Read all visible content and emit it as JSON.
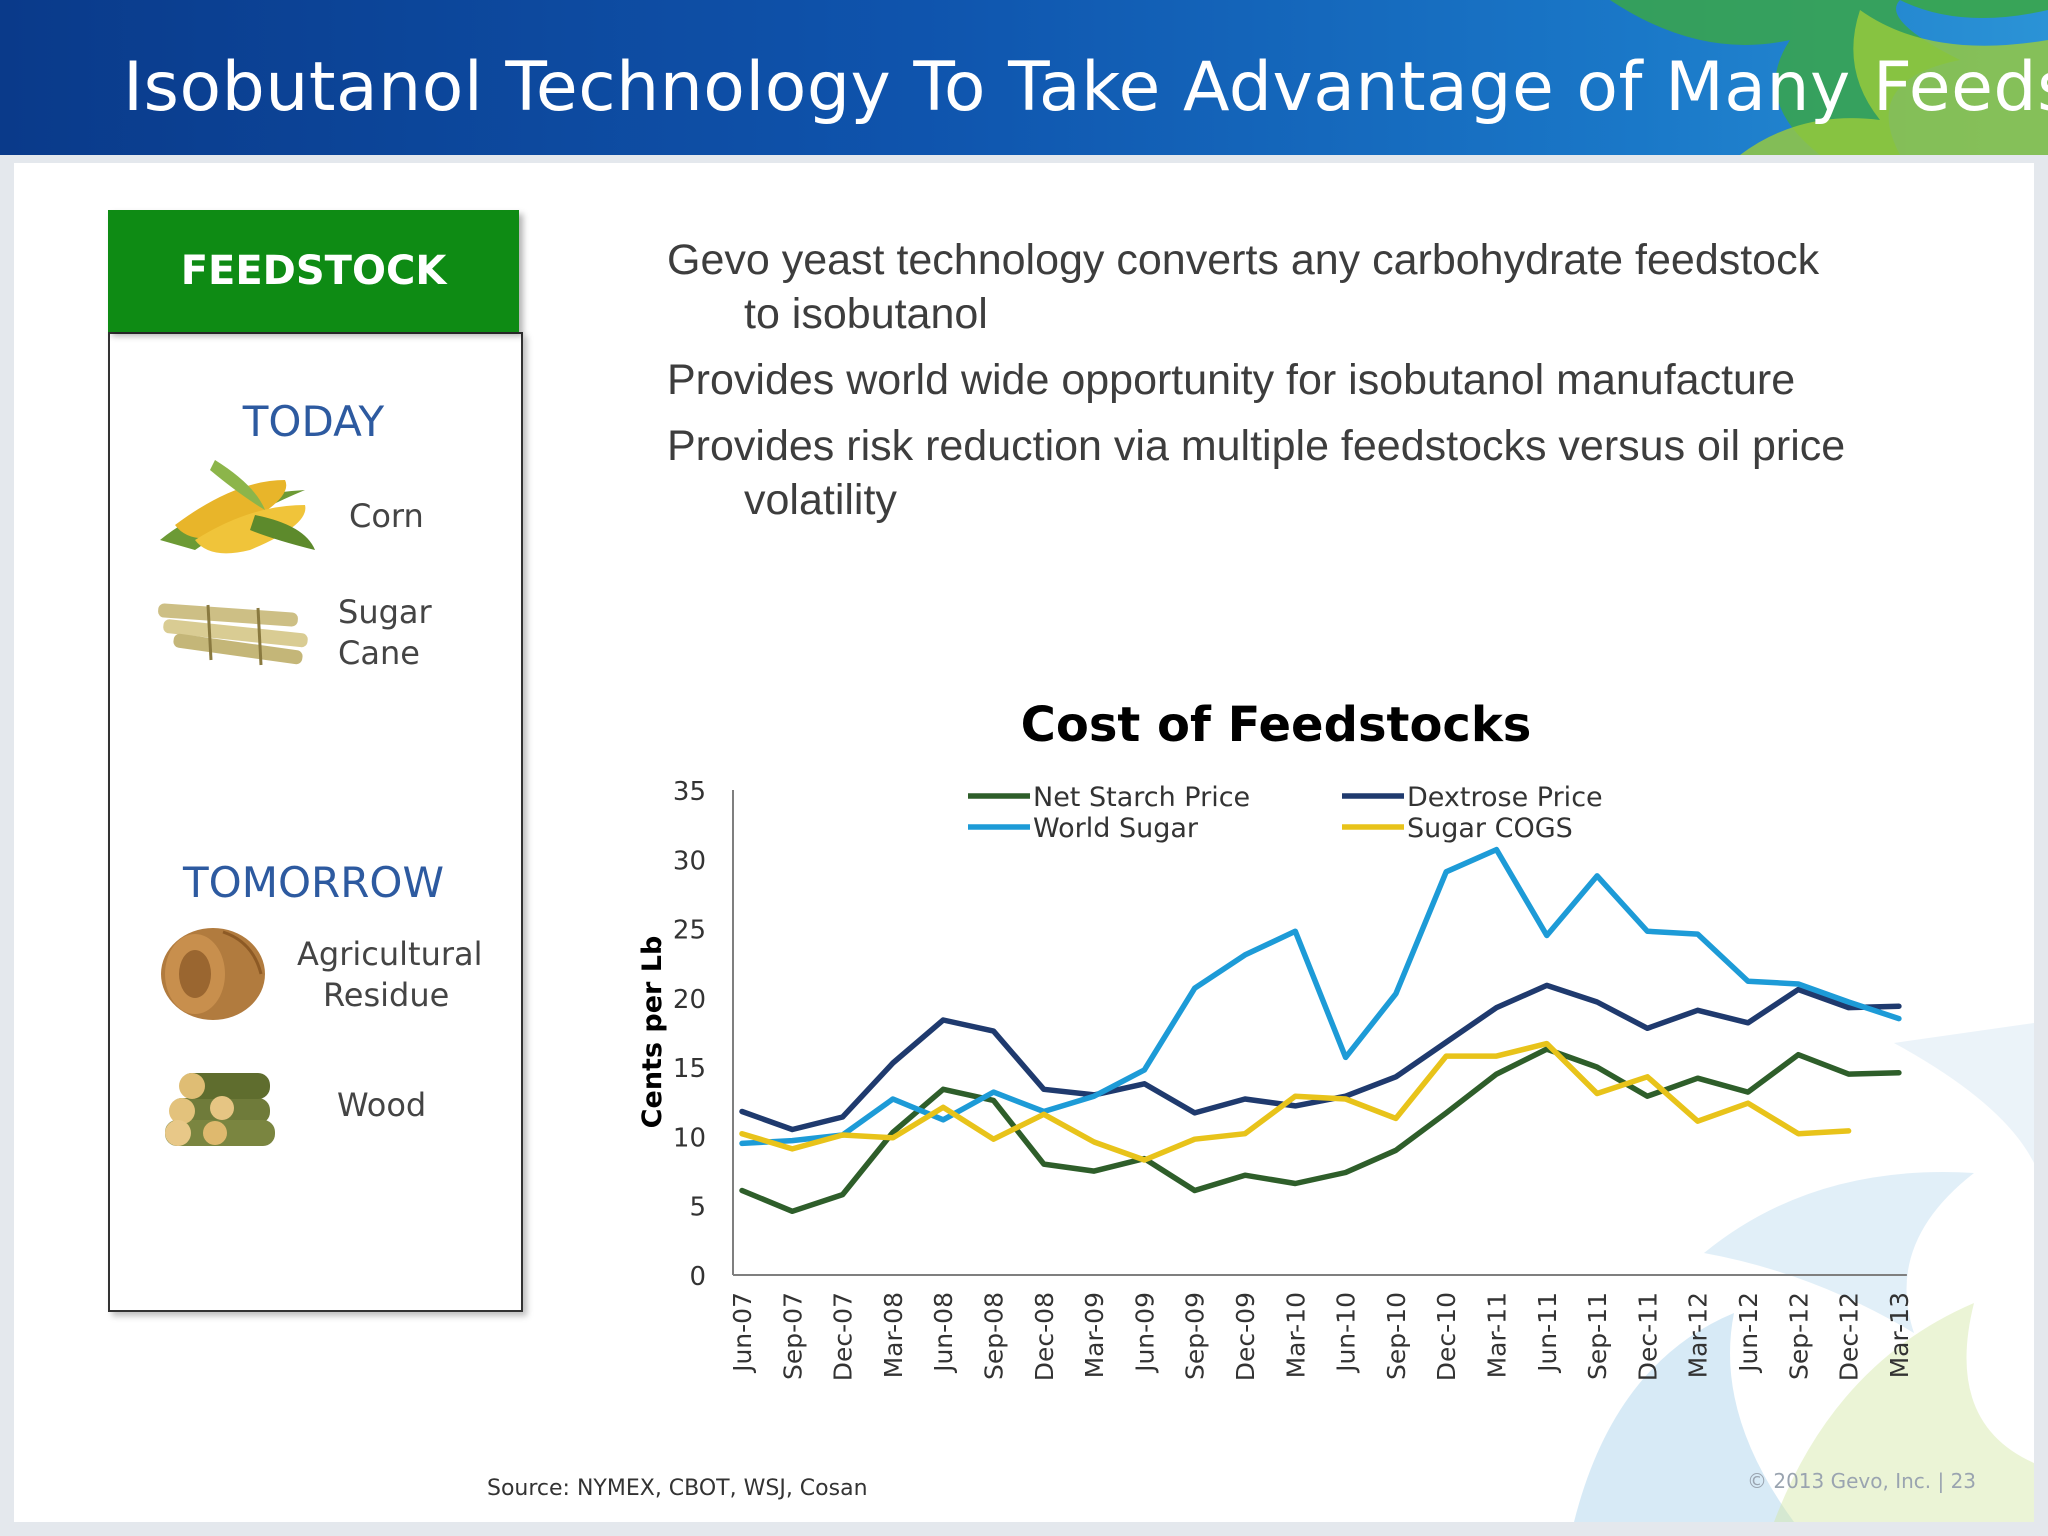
{
  "slide": {
    "title": "Isobutanol Technology To Take Advantage of Many Feedstocks",
    "feedstock_header": "FEEDSTOCK",
    "today_label": "TODAY",
    "tomorrow_label": "TOMORROW",
    "items": {
      "corn": "Corn",
      "sugar": "Sugar",
      "cane": "Cane",
      "agricultural": "Agricultural",
      "residue": "Residue",
      "wood": "Wood"
    },
    "bullets": {
      "b1_line1": "Gevo yeast technology converts any carbohydrate feedstock",
      "b1_line2": "to isobutanol",
      "b2": "Provides world wide opportunity for isobutanol manufacture",
      "b3_line1": "Provides risk reduction via multiple feedstocks versus oil price",
      "b3_line2": "volatility"
    },
    "source": "Source:  NYMEX, CBOT, WSJ, Cosan",
    "copyright": "© 2013 Gevo, Inc. | 23"
  },
  "chart_data": {
    "type": "line",
    "title": "Cost of Feedstocks",
    "xlabel": "",
    "ylabel": "Cents per Lb",
    "ylim": [
      0,
      35
    ],
    "yticks": [
      "0",
      "5",
      "10",
      "15",
      "20",
      "25",
      "30",
      "35"
    ],
    "legend_position": "top",
    "categories": [
      "Jun-07",
      "Sep-07",
      "Dec-07",
      "Mar-08",
      "Jun-08",
      "Sep-08",
      "Dec-08",
      "Mar-09",
      "Jun-09",
      "Sep-09",
      "Dec-09",
      "Mar-10",
      "Jun-10",
      "Sep-10",
      "Dec-10",
      "Mar-11",
      "Jun-11",
      "Sep-11",
      "Dec-11",
      "Mar-12",
      "Jun-12",
      "Sep-12",
      "Dec-12",
      "Mar-13"
    ],
    "series": [
      {
        "name": "Net Starch Price",
        "color": "#2e5e2a",
        "values": [
          6.1,
          4.6,
          5.8,
          10.3,
          13.4,
          12.6,
          8.0,
          7.5,
          8.4,
          6.1,
          7.2,
          6.6,
          7.4,
          9.0,
          11.7,
          14.5,
          16.3,
          15.0,
          12.9,
          14.2,
          13.2,
          15.9,
          14.5,
          14.6
        ]
      },
      {
        "name": "Dextrose Price",
        "color": "#1f3a6e",
        "values": [
          11.8,
          10.5,
          11.4,
          15.3,
          18.4,
          17.6,
          13.4,
          13.0,
          13.8,
          11.7,
          12.7,
          12.2,
          12.9,
          14.3,
          16.8,
          19.3,
          20.9,
          19.7,
          17.8,
          19.1,
          18.2,
          20.6,
          19.3,
          19.4
        ]
      },
      {
        "name": "World Sugar",
        "color": "#1d9bd7",
        "values": [
          9.5,
          9.7,
          10.1,
          12.7,
          11.2,
          13.2,
          11.8,
          12.9,
          14.8,
          20.7,
          23.1,
          24.8,
          15.7,
          20.3,
          29.1,
          30.7,
          24.5,
          28.8,
          24.8,
          24.6,
          21.2,
          21.0,
          19.7,
          18.5
        ]
      },
      {
        "name": "Sugar COGS",
        "color": "#e8c31a",
        "values": [
          10.2,
          9.1,
          10.1,
          9.9,
          12.1,
          9.8,
          11.6,
          9.6,
          8.3,
          9.8,
          10.2,
          12.9,
          12.7,
          11.3,
          15.8,
          15.8,
          16.7,
          13.1,
          14.3,
          11.1,
          12.4,
          10.2,
          10.4,
          null
        ]
      }
    ]
  }
}
